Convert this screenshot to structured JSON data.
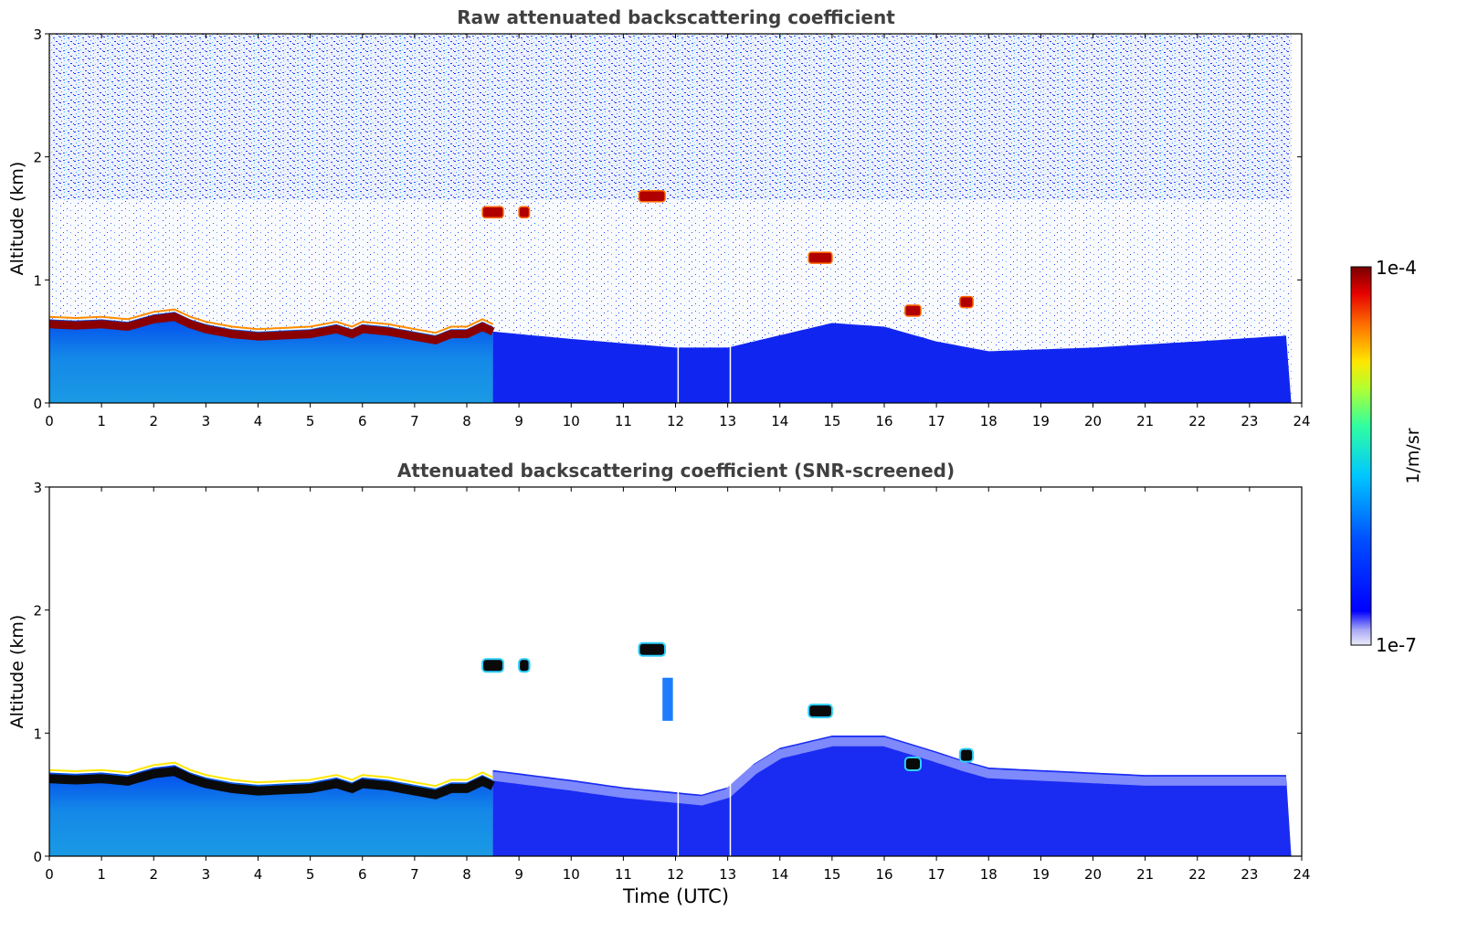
{
  "chart_data": [
    {
      "type": "heatmap",
      "title": "Raw attenuated backscattering coefficient",
      "ylabel": "Altitude (km)",
      "xlabel": "",
      "xlim": [
        0,
        24
      ],
      "ylim": [
        0,
        3
      ],
      "xticks": [
        "0",
        "1",
        "2",
        "3",
        "4",
        "5",
        "6",
        "7",
        "8",
        "9",
        "10",
        "11",
        "12",
        "13",
        "14",
        "15",
        "16",
        "17",
        "18",
        "19",
        "20",
        "21",
        "22",
        "23",
        "24"
      ],
      "yticks": [
        "0",
        "1",
        "2",
        "3"
      ],
      "boundary_layer_top_km": [
        [
          0,
          0.68
        ],
        [
          0.5,
          0.67
        ],
        [
          1,
          0.68
        ],
        [
          1.5,
          0.66
        ],
        [
          2,
          0.72
        ],
        [
          2.4,
          0.74
        ],
        [
          2.7,
          0.68
        ],
        [
          3,
          0.64
        ],
        [
          3.5,
          0.6
        ],
        [
          4,
          0.58
        ],
        [
          4.5,
          0.59
        ],
        [
          5,
          0.6
        ],
        [
          5.5,
          0.64
        ],
        [
          5.8,
          0.6
        ],
        [
          6,
          0.64
        ],
        [
          6.5,
          0.62
        ],
        [
          7,
          0.58
        ],
        [
          7.4,
          0.55
        ],
        [
          7.7,
          0.6
        ],
        [
          8,
          0.6
        ],
        [
          8.3,
          0.66
        ],
        [
          8.5,
          0.62
        ]
      ],
      "clouds": [
        {
          "t0": 8.3,
          "t1": 8.7,
          "z": 1.55
        },
        {
          "t0": 9.0,
          "t1": 9.2,
          "z": 1.55
        },
        {
          "t0": 11.3,
          "t1": 11.8,
          "z": 1.68
        },
        {
          "t0": 14.55,
          "t1": 15.0,
          "z": 1.18
        },
        {
          "t0": 16.4,
          "t1": 16.7,
          "z": 0.75
        },
        {
          "t0": 17.45,
          "t1": 17.7,
          "z": 0.82
        }
      ],
      "data_gaps_utc": [
        12.05,
        13.05
      ]
    },
    {
      "type": "heatmap",
      "title": "Attenuated backscattering coefficient (SNR-screened)",
      "ylabel": "Altitude (km)",
      "xlabel": "Time (UTC)",
      "xlim": [
        0,
        24
      ],
      "ylim": [
        0,
        3
      ],
      "xticks": [
        "0",
        "1",
        "2",
        "3",
        "4",
        "5",
        "6",
        "7",
        "8",
        "9",
        "10",
        "11",
        "12",
        "13",
        "14",
        "15",
        "16",
        "17",
        "18",
        "19",
        "20",
        "21",
        "22",
        "23",
        "24"
      ],
      "yticks": [
        "0",
        "1",
        "2",
        "3"
      ],
      "aerosol_top_km": [
        [
          8.5,
          0.7
        ],
        [
          10,
          0.62
        ],
        [
          11,
          0.56
        ],
        [
          12,
          0.52
        ],
        [
          12.5,
          0.5
        ],
        [
          13,
          0.56
        ],
        [
          13.5,
          0.75
        ],
        [
          14,
          0.88
        ],
        [
          15,
          0.98
        ],
        [
          16,
          0.98
        ],
        [
          17,
          0.85
        ],
        [
          17.5,
          0.78
        ],
        [
          18,
          0.72
        ],
        [
          19,
          0.7
        ],
        [
          20,
          0.68
        ],
        [
          21,
          0.66
        ],
        [
          22,
          0.66
        ],
        [
          23,
          0.66
        ],
        [
          23.8,
          0.66
        ]
      ]
    }
  ],
  "colorbar": {
    "label": "1/m/sr",
    "max_label": "1e-4",
    "min_label": "1e-7",
    "colormap": [
      "#7a0000",
      "#c80000",
      "#ff3c00",
      "#ff9600",
      "#ffe600",
      "#b4ff46",
      "#46ffb4",
      "#00dcff",
      "#008cff",
      "#0046ff",
      "#0000ff",
      "#9696ff",
      "#e6e6ff"
    ]
  }
}
